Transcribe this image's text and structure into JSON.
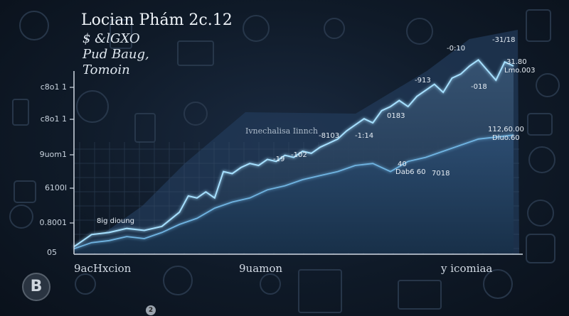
{
  "chart_data": {
    "type": "area",
    "title": "Locian Phám 2c.12",
    "subtitle_lines": [
      "$ &lGXO",
      "Pud Baug,",
      "Tomoin"
    ],
    "ylabel_ticks": [
      "c8o1 1",
      "c8o1 1",
      "9uom1",
      "6100l",
      "0.8001",
      "05"
    ],
    "xlabel_ticks": [
      "9acHxcion",
      "9uamon",
      "y icomiaa"
    ],
    "annotation": "Ivnechalisa Iinnch",
    "series": [
      {
        "style": "glow",
        "color": "#8fd3ff",
        "x": [
          0,
          4,
          8,
          12,
          16,
          20,
          24,
          26,
          28,
          30,
          32,
          34,
          36,
          38,
          40,
          42,
          44,
          46,
          48,
          50,
          52,
          54,
          56,
          58,
          60,
          62,
          64,
          66,
          68,
          70,
          72,
          74,
          76,
          78,
          80,
          82,
          84,
          86,
          88,
          90,
          92,
          94,
          96,
          98,
          100
        ],
        "y": [
          3,
          9,
          10,
          12,
          11,
          13,
          20,
          28,
          27,
          30,
          27,
          40,
          39,
          42,
          44,
          43,
          46,
          45,
          48,
          47,
          50,
          49,
          52,
          54,
          56,
          60,
          63,
          66,
          64,
          70,
          72,
          75,
          72,
          77,
          80,
          83,
          79,
          86,
          88,
          92,
          95,
          90,
          85,
          94,
          92
        ]
      },
      {
        "style": "mid",
        "color": "#5fa6d6",
        "x": [
          0,
          4,
          8,
          12,
          16,
          20,
          24,
          28,
          32,
          36,
          40,
          44,
          48,
          52,
          56,
          60,
          64,
          68,
          72,
          76,
          80,
          84,
          88,
          92,
          96,
          100
        ],
        "y": [
          2,
          5,
          6,
          8,
          7,
          10,
          14,
          17,
          22,
          25,
          27,
          31,
          33,
          36,
          38,
          40,
          43,
          44,
          40,
          45,
          47,
          50,
          53,
          56,
          57,
          58
        ]
      }
    ],
    "data_labels": [
      {
        "text": "-0:10"
      },
      {
        "text": "-31/18"
      },
      {
        "text": "-913"
      },
      {
        "text": "31.80"
      },
      {
        "text": "Lmo.003"
      },
      {
        "text": "-018"
      },
      {
        "text": "0183"
      },
      {
        "text": "-8103"
      },
      {
        "text": "-1:14"
      },
      {
        "text": "-19"
      },
      {
        "text": "-102"
      },
      {
        "text": "112,60.00"
      },
      {
        "text": "Dluo.60"
      },
      {
        "text": "40"
      },
      {
        "text": "Dab6 60"
      },
      {
        "text": "7018"
      },
      {
        "text": "8ig dioung"
      }
    ],
    "colors": {
      "accent": "#8fd3ff",
      "series2": "#5fa6d6",
      "area_light": "#2f4b6c",
      "area_dark": "#1c3250"
    },
    "ylim": [
      0,
      100
    ],
    "xlim": [
      0,
      100
    ],
    "grid": true,
    "logo_text": "B",
    "coin_text": "2"
  }
}
